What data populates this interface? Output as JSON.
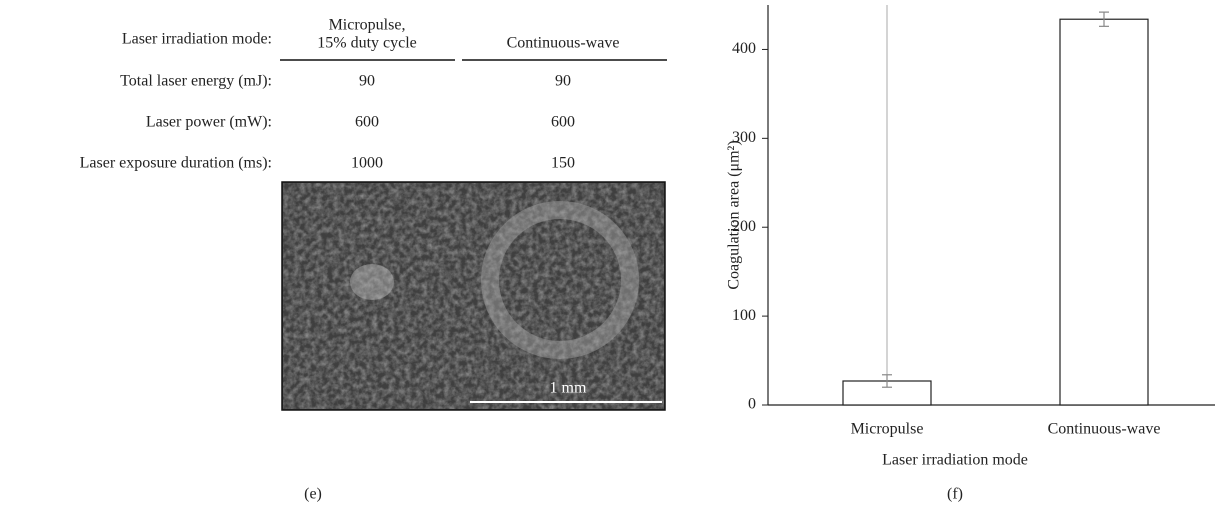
{
  "panel_e": {
    "label": "(e)",
    "table": {
      "header": {
        "label": "Laser irradiation mode:",
        "columns": [
          [
            "Micropulse,",
            "15% duty cycle"
          ],
          [
            "Continuous-wave"
          ]
        ]
      },
      "rows": [
        [
          "Total laser energy (mJ):",
          "90",
          "90"
        ],
        [
          "Laser power (mW):",
          "600",
          "600"
        ],
        [
          "Laser exposure duration (ms):",
          "1000",
          "150"
        ]
      ]
    },
    "scale_bar": "1 mm"
  },
  "chart_data": {
    "type": "bar",
    "label": "(f)",
    "x_label": "Laser irradiation mode",
    "y_label": "Coagulation area (μm²)",
    "categories": [
      "Micropulse",
      "Continuous-wave"
    ],
    "values": [
      27,
      434
    ],
    "errors": [
      7,
      8
    ],
    "color": "#ffffff",
    "ylim": [
      0,
      450
    ],
    "yticks": [
      0,
      100,
      200,
      300,
      400
    ]
  }
}
